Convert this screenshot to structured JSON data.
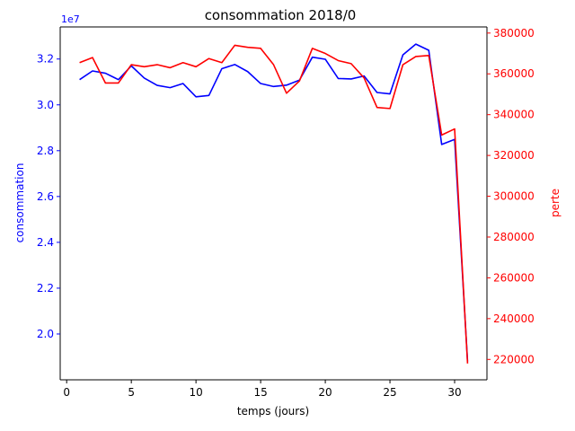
{
  "chart_data": {
    "type": "line",
    "title": "consommation 2018/0",
    "xlabel": "temps (jours)",
    "ylabel_left": "consommation",
    "ylabel_right": "perte",
    "left_axis_offset_label": "1e7",
    "xlim": [
      -0.5,
      32.5
    ],
    "ylim_left": [
      18000000.0,
      33400000.0
    ],
    "ylim_right": [
      210000,
      383000
    ],
    "x_ticks": [
      0,
      5,
      10,
      15,
      20,
      25,
      30
    ],
    "y_ticks_left": [
      2.0,
      2.2,
      2.4,
      2.6,
      2.8,
      3.0,
      3.2
    ],
    "y_ticks_right": [
      220000,
      240000,
      260000,
      280000,
      300000,
      320000,
      340000,
      360000,
      380000
    ],
    "grid": false,
    "colors": {
      "left": "#0000ff",
      "right": "#ff0000",
      "axes": "#000000"
    },
    "x": [
      1,
      2,
      3,
      4,
      5,
      6,
      7,
      8,
      9,
      10,
      11,
      12,
      13,
      14,
      15,
      16,
      17,
      18,
      19,
      20,
      21,
      22,
      23,
      24,
      25,
      26,
      27,
      28,
      29,
      30,
      31
    ],
    "series": [
      {
        "axis": "left",
        "color": "#0000ff",
        "values": [
          31100000,
          31480000,
          31380000,
          31100000,
          31700000,
          31170000,
          30850000,
          30750000,
          30930000,
          30350000,
          30410000,
          31580000,
          31760000,
          31450000,
          30930000,
          30800000,
          30860000,
          31080000,
          32080000,
          31990000,
          31150000,
          31130000,
          31260000,
          30540000,
          30480000,
          32180000,
          32650000,
          32380000,
          28270000,
          28490000,
          18800000
        ]
      },
      {
        "axis": "right",
        "color": "#ff0000",
        "values": [
          365500,
          368000,
          355500,
          355500,
          364500,
          363500,
          364500,
          363000,
          365500,
          363500,
          367500,
          365500,
          374000,
          373000,
          372500,
          364500,
          350500,
          356500,
          372500,
          370000,
          366500,
          365000,
          358000,
          343500,
          343000,
          364500,
          368500,
          369000,
          330000,
          333000,
          218000
        ]
      }
    ]
  }
}
